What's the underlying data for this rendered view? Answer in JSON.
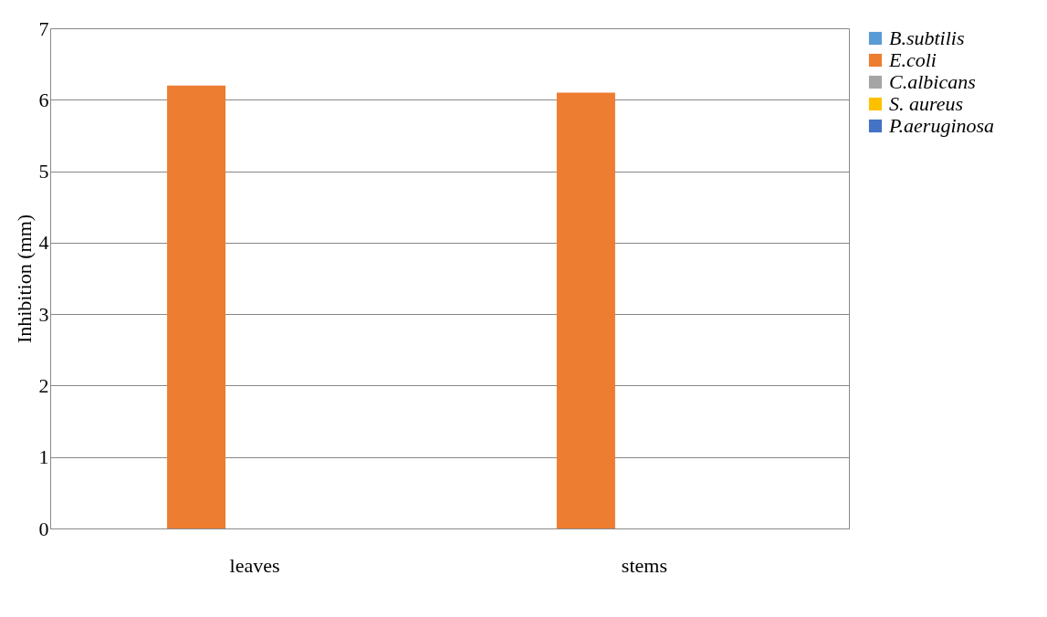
{
  "chart_data": {
    "type": "bar",
    "ylabel": "Inhibition (mm)",
    "categories": [
      "leaves",
      "stems"
    ],
    "series": [
      {
        "name": "B.subtilis",
        "color": "#5b9bd5",
        "values": [
          0,
          0
        ]
      },
      {
        "name": "E.coli",
        "color": "#ed7d31",
        "values": [
          6.2,
          6.1
        ]
      },
      {
        "name": "C.albicans",
        "color": "#a5a5a5",
        "values": [
          0,
          0
        ]
      },
      {
        "name": "S. aureus",
        "color": "#ffc000",
        "values": [
          0,
          0
        ]
      },
      {
        "name": "P.aeruginosa",
        "color": "#4472c4",
        "values": [
          0,
          0
        ]
      }
    ],
    "ylim": [
      0,
      7
    ],
    "yticks": [
      0,
      1,
      2,
      3,
      4,
      5,
      6,
      7
    ],
    "grid": "y",
    "legend": "right"
  }
}
